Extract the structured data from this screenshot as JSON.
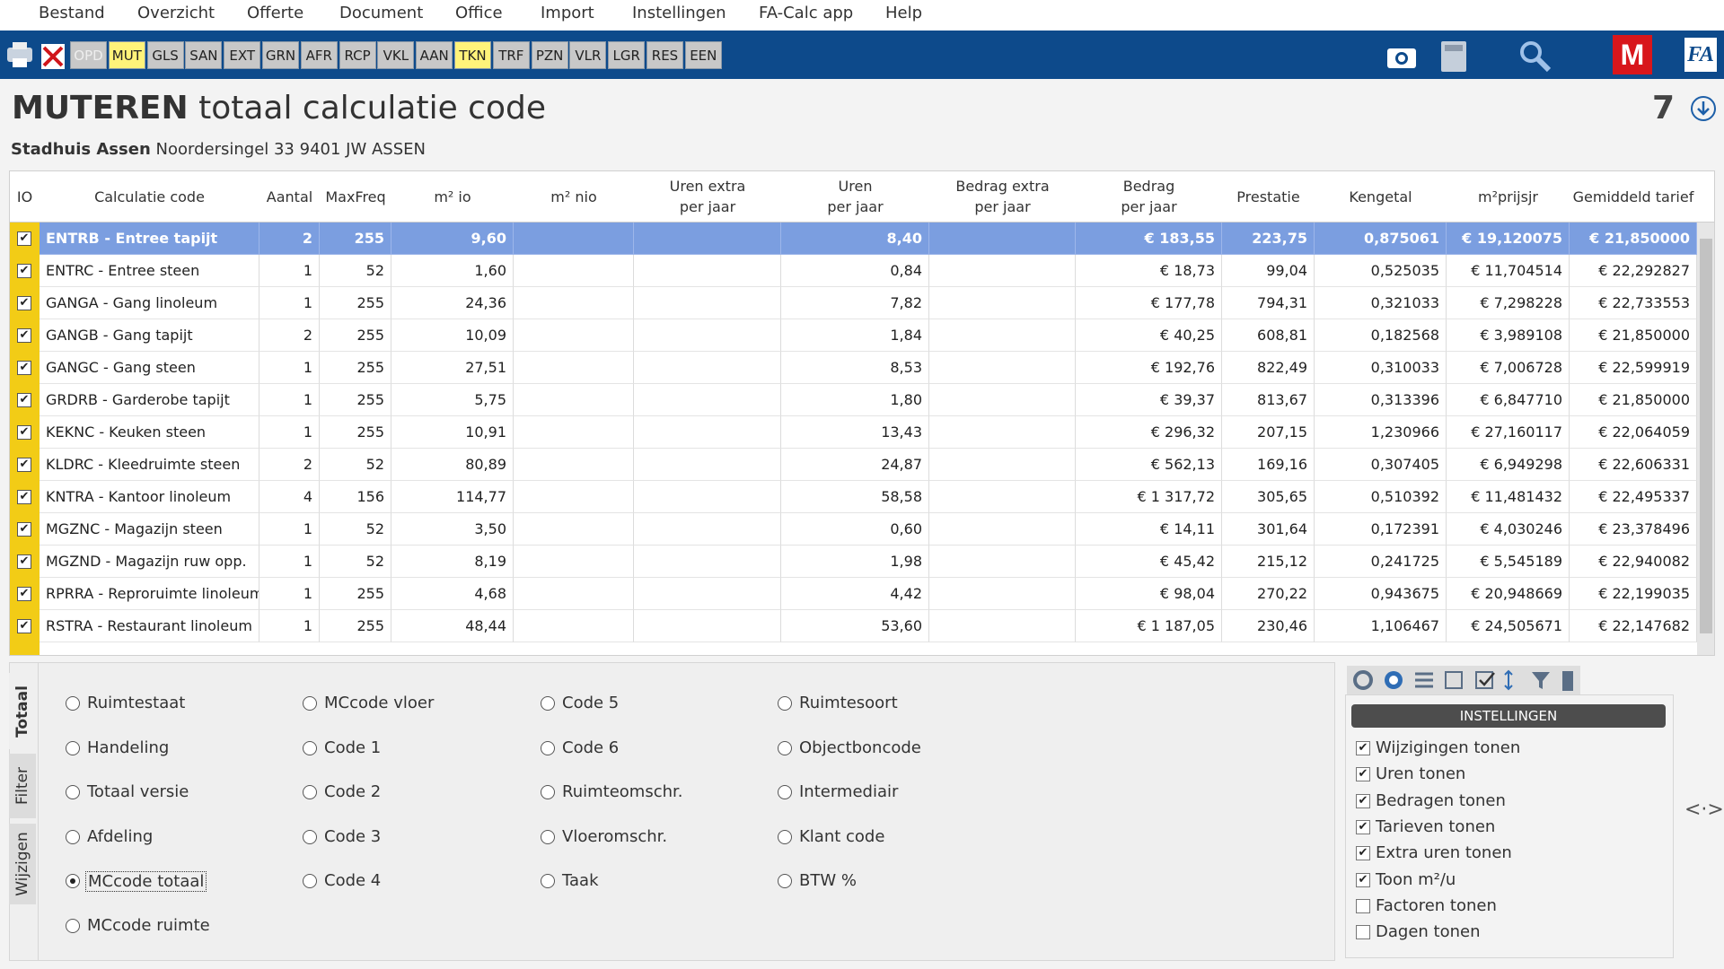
{
  "menu": [
    "Bestand",
    "Overzicht",
    "Offerte",
    "Document",
    "Office",
    "Import",
    "Instellingen",
    "FA-Calc app",
    "Help"
  ],
  "toolbar": {
    "tabs": [
      {
        "label": "OPD",
        "style": "disabled"
      },
      {
        "label": "MUT",
        "style": "yellow"
      },
      {
        "label": "GLS",
        "style": "normal"
      },
      {
        "label": "SAN",
        "style": "normal"
      },
      {
        "label": "EXT",
        "style": "normal"
      },
      {
        "label": "GRN",
        "style": "normal"
      },
      {
        "label": "AFR",
        "style": "normal"
      },
      {
        "label": "RCP",
        "style": "normal"
      },
      {
        "label": "VKL",
        "style": "normal"
      },
      {
        "label": "AAN",
        "style": "normal"
      },
      {
        "label": "TKN",
        "style": "yellow"
      },
      {
        "label": "TRF",
        "style": "normal"
      },
      {
        "label": "PZN",
        "style": "normal"
      },
      {
        "label": "VLR",
        "style": "normal"
      },
      {
        "label": "LGR",
        "style": "normal"
      },
      {
        "label": "RES",
        "style": "normal"
      },
      {
        "label": "EEN",
        "style": "normal"
      }
    ],
    "logo_m": "M",
    "logo_fa": "FA"
  },
  "header": {
    "title_bold": "MUTEREN",
    "title_rest": "totaal calculatie code",
    "count": "7",
    "address_bold": "Stadhuis Assen",
    "address_rest": "Noordersingel 33 9401 JW ASSEN"
  },
  "table": {
    "columns": [
      "IO",
      "Calculatie code",
      "Aantal",
      "MaxFreq",
      "m² io",
      "m² nio",
      "Uren extra\nper jaar",
      "Uren\nper jaar",
      "Bedrag extra\nper jaar",
      "Bedrag\nper jaar",
      "Prestatie",
      "Kengetal",
      "m²prijsjr",
      "Gemiddeld tarief"
    ],
    "selected_row": 0,
    "rows": [
      {
        "checked": true,
        "cells": [
          "ENTRB - Entree tapijt",
          "2",
          "255",
          "9,60",
          null,
          null,
          "8,40",
          null,
          "€ 183,55",
          "223,75",
          "0,875061",
          "€ 19,120075",
          "€ 21,850000"
        ]
      },
      {
        "checked": true,
        "cells": [
          "ENTRC - Entree steen",
          "1",
          "52",
          "1,60",
          null,
          null,
          "0,84",
          null,
          "€ 18,73",
          "99,04",
          "0,525035",
          "€ 11,704514",
          "€ 22,292827"
        ]
      },
      {
        "checked": true,
        "cells": [
          "GANGA - Gang linoleum",
          "1",
          "255",
          "24,36",
          null,
          null,
          "7,82",
          null,
          "€ 177,78",
          "794,31",
          "0,321033",
          "€ 7,298228",
          "€ 22,733553"
        ]
      },
      {
        "checked": true,
        "cells": [
          "GANGB - Gang tapijt",
          "2",
          "255",
          "10,09",
          null,
          null,
          "1,84",
          null,
          "€ 40,25",
          "608,81",
          "0,182568",
          "€ 3,989108",
          "€ 21,850000"
        ]
      },
      {
        "checked": true,
        "cells": [
          "GANGC - Gang steen",
          "1",
          "255",
          "27,51",
          null,
          null,
          "8,53",
          null,
          "€ 192,76",
          "822,49",
          "0,310033",
          "€ 7,006728",
          "€ 22,599919"
        ]
      },
      {
        "checked": true,
        "cells": [
          "GRDRB - Garderobe tapijt",
          "1",
          "255",
          "5,75",
          null,
          null,
          "1,80",
          null,
          "€ 39,37",
          "813,67",
          "0,313396",
          "€ 6,847710",
          "€ 21,850000"
        ]
      },
      {
        "checked": true,
        "cells": [
          "KEKNC - Keuken steen",
          "1",
          "255",
          "10,91",
          null,
          null,
          "13,43",
          null,
          "€ 296,32",
          "207,15",
          "1,230966",
          "€ 27,160117",
          "€ 22,064059"
        ]
      },
      {
        "checked": true,
        "cells": [
          "KLDRC - Kleedruimte steen",
          "2",
          "52",
          "80,89",
          null,
          null,
          "24,87",
          null,
          "€ 562,13",
          "169,16",
          "0,307405",
          "€ 6,949298",
          "€ 22,606331"
        ]
      },
      {
        "checked": true,
        "cells": [
          "KNTRA - Kantoor linoleum",
          "4",
          "156",
          "114,77",
          null,
          null,
          "58,58",
          null,
          "€ 1 317,72",
          "305,65",
          "0,510392",
          "€ 11,481432",
          "€ 22,495337"
        ]
      },
      {
        "checked": true,
        "cells": [
          "MGZNC - Magazijn steen",
          "1",
          "52",
          "3,50",
          null,
          null,
          "0,60",
          null,
          "€ 14,11",
          "301,64",
          "0,172391",
          "€ 4,030246",
          "€ 23,378496"
        ]
      },
      {
        "checked": true,
        "cells": [
          "MGZND - Magazijn ruw opp.",
          "1",
          "52",
          "8,19",
          null,
          null,
          "1,98",
          null,
          "€ 45,42",
          "215,12",
          "0,241725",
          "€ 5,545189",
          "€ 22,940082"
        ]
      },
      {
        "checked": true,
        "cells": [
          "RPRRA - Reproruimte linoleum",
          "1",
          "255",
          "4,68",
          null,
          null,
          "4,42",
          null,
          "€ 98,04",
          "270,22",
          "0,943675",
          "€ 20,948669",
          "€ 22,199035"
        ]
      },
      {
        "checked": true,
        "cells": [
          "RSTRA - Restaurant linoleum",
          "1",
          "255",
          "48,44",
          null,
          null,
          "53,60",
          null,
          "€ 1 187,05",
          "230,46",
          "1,106467",
          "€ 24,505671",
          "€ 22,147682"
        ]
      }
    ]
  },
  "side_tabs": [
    "Totaal",
    "Filter",
    "Wijzigen"
  ],
  "options": {
    "selected": "MCcode totaal",
    "columns": [
      [
        "Ruimtestaat",
        "Handeling",
        "Totaal versie",
        "Afdeling",
        "MCcode totaal",
        "MCcode ruimte"
      ],
      [
        "MCcode vloer",
        "Code 1",
        "Code 2",
        "Code 3",
        "Code 4"
      ],
      [
        "Code 5",
        "Code 6",
        "Ruimteomschr.",
        "Vloeromschr.",
        "Taak"
      ],
      [
        "Ruimtesoort",
        "Objectboncode",
        "Intermediair",
        "Klant code",
        "BTW %"
      ]
    ]
  },
  "settings": {
    "title": "INSTELLINGEN",
    "items": [
      {
        "label": "Wijzigingen tonen",
        "checked": true
      },
      {
        "label": "Uren tonen",
        "checked": true
      },
      {
        "label": "Bedragen tonen",
        "checked": true
      },
      {
        "label": "Tarieven tonen",
        "checked": true
      },
      {
        "label": "Extra uren tonen",
        "checked": true
      },
      {
        "label": "Toon m²/u",
        "checked": true
      },
      {
        "label": "Factoren tonen",
        "checked": false
      },
      {
        "label": "Dagen tonen",
        "checked": false
      }
    ]
  }
}
